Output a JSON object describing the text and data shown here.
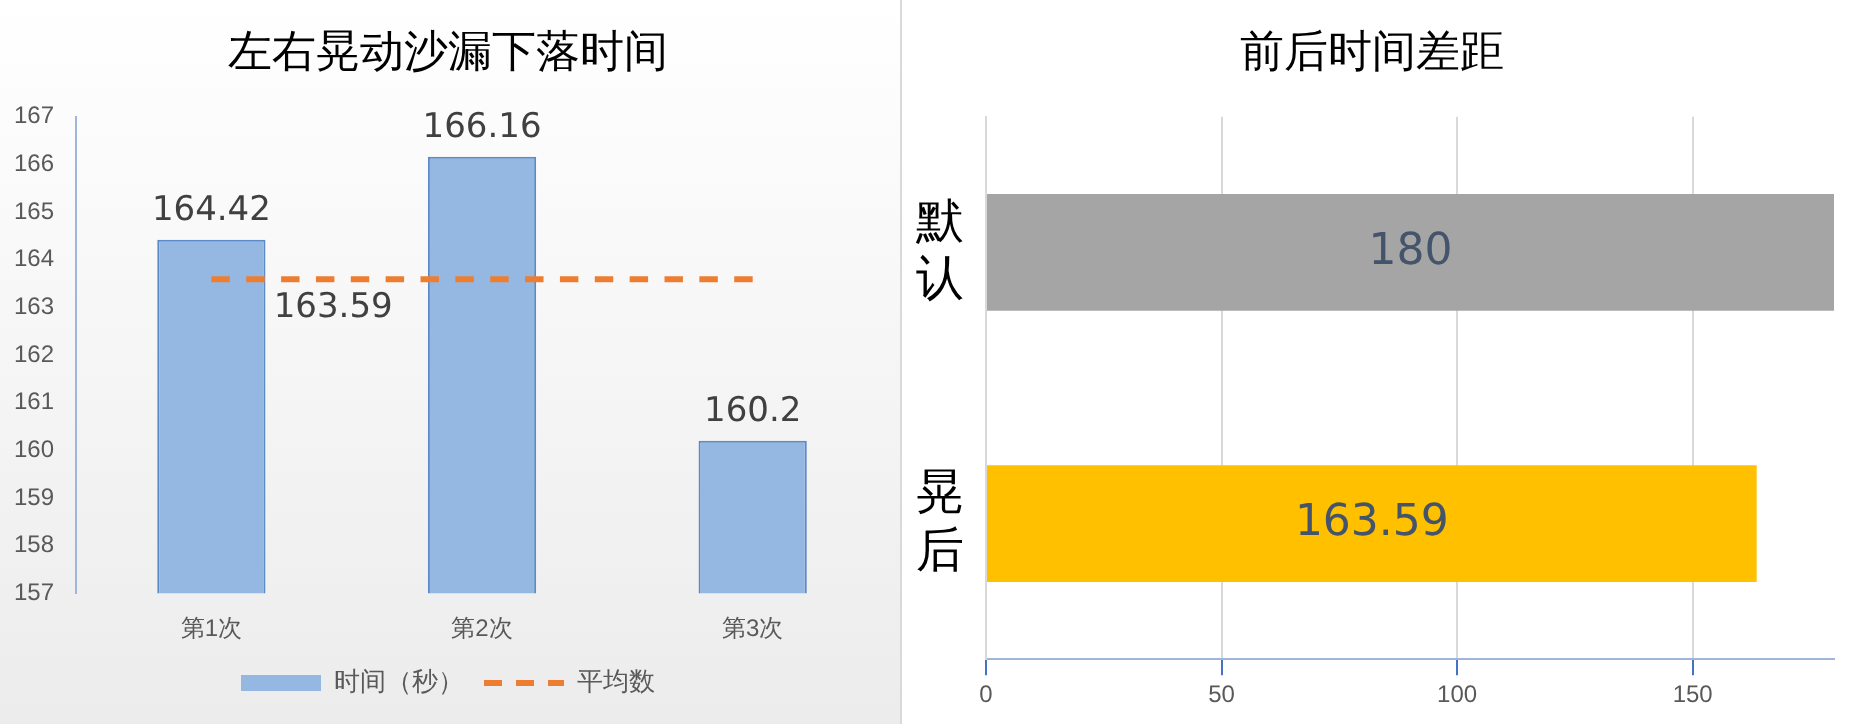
{
  "chart_data": [
    {
      "type": "bar",
      "title": "左右晃动沙漏下落时间",
      "categories": [
        "第1次",
        "第2次",
        "第3次"
      ],
      "series": [
        {
          "name": "时间（秒）",
          "type": "bar",
          "color": "#95b8e3",
          "values": [
            164.42,
            166.16,
            160.2
          ],
          "value_labels": [
            "164.42",
            "166.16",
            "160.2"
          ]
        },
        {
          "name": "平均数",
          "type": "line",
          "color": "#ed7d31",
          "line_style": "dashed",
          "marker": "none",
          "values": [
            163.59,
            163.59,
            163.59
          ],
          "value_labels": [
            "163.59",
            null,
            null
          ]
        }
      ],
      "ylim": [
        157,
        167
      ],
      "yticks": [
        157,
        158,
        159,
        160,
        161,
        162,
        163,
        164,
        165,
        166,
        167
      ],
      "grid": false,
      "legend": "bottom"
    },
    {
      "type": "bar",
      "orientation": "horizontal",
      "title": "前后时间差距",
      "categories": [
        "默认",
        "晃后"
      ],
      "values": [
        180,
        163.59
      ],
      "colors": [
        "#a5a5a5",
        "#ffc000"
      ],
      "xlim": [
        0,
        180
      ],
      "xticks": [
        0,
        50,
        100,
        150
      ],
      "grid": "x",
      "data_labels": true,
      "legend": false
    }
  ]
}
